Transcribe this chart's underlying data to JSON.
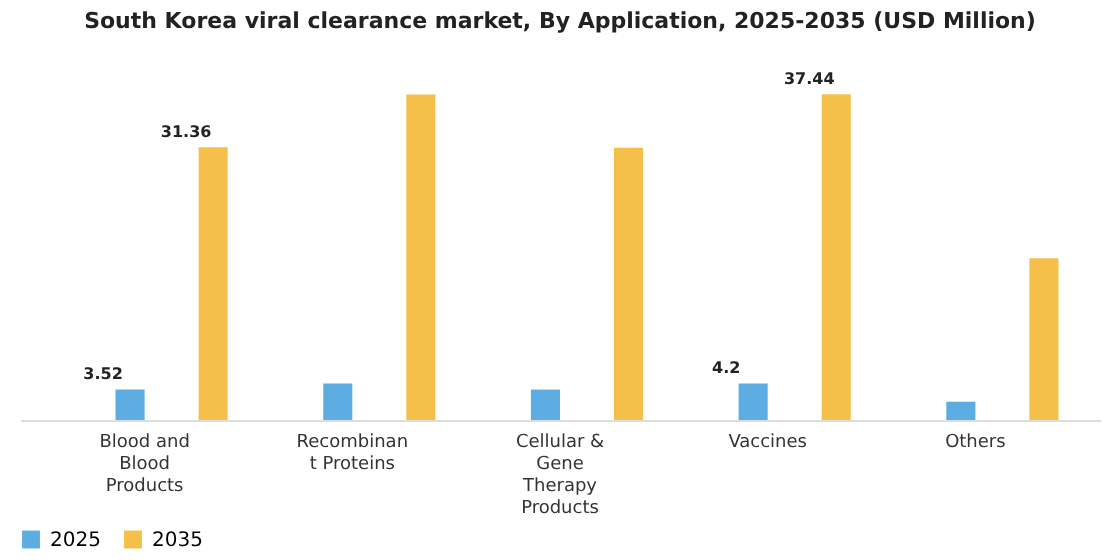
{
  "chart_data": {
    "type": "bar",
    "title": "South Korea viral clearance market, By Application, 2025-2035 (USD Million)",
    "categories": [
      "Blood and\nBlood\nProducts",
      "Recombinan\nt Proteins",
      "Cellular &\nGene\nTherapy\nProducts",
      "Vaccines",
      "Others"
    ],
    "series": [
      {
        "name": "2025",
        "color": "#5dade2",
        "values": [
          3.52,
          4.2,
          3.5,
          4.2,
          2.1
        ],
        "value_labels": [
          "3.52",
          null,
          null,
          "4.2",
          null
        ]
      },
      {
        "name": "2035",
        "color": "#f5c04a",
        "values": [
          31.36,
          37.4,
          31.3,
          37.44,
          18.6
        ],
        "value_labels": [
          "31.36",
          null,
          null,
          "37.44",
          null
        ]
      }
    ],
    "legend": "bottom",
    "tick_labels": "x"
  }
}
